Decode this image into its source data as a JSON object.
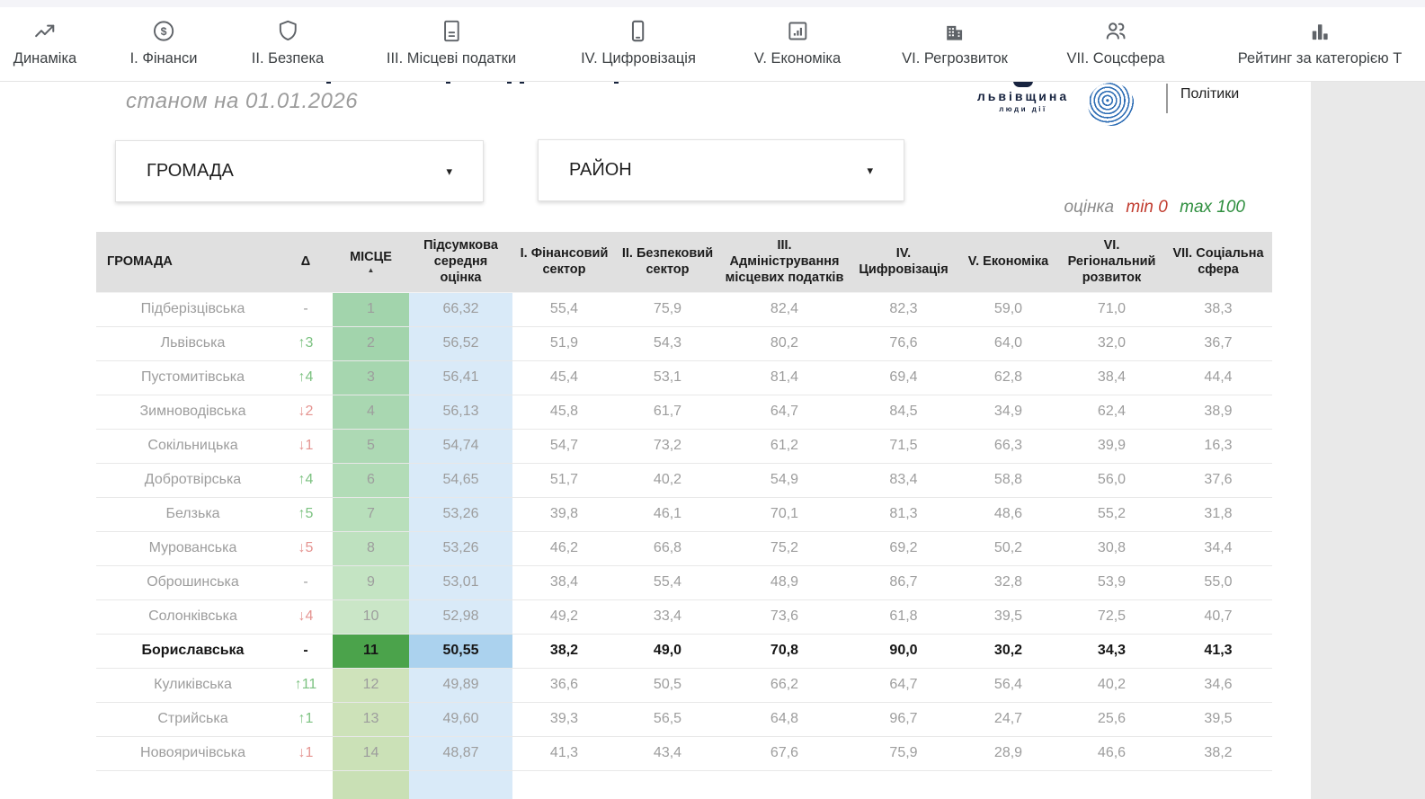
{
  "nav": {
    "items": [
      {
        "label": "Динаміка",
        "icon": "trending-up"
      },
      {
        "label": "І. Фінанси",
        "icon": "dollar-circle"
      },
      {
        "label": "ІІ. Безпека",
        "icon": "shield"
      },
      {
        "label": "ІІІ. Місцеві податки",
        "icon": "document"
      },
      {
        "label": "IV. Цифровізація",
        "icon": "smartphone"
      },
      {
        "label": "V. Економіка",
        "icon": "chart-box"
      },
      {
        "label": "VI. Регрозвиток",
        "icon": "building"
      },
      {
        "label": "VII. Соцсфера",
        "icon": "people"
      },
      {
        "label": "Рейтинг за категорією Т",
        "icon": "leaderboard"
      }
    ]
  },
  "header": {
    "date_note": "станом на 01.01.2026"
  },
  "logos": {
    "region_name": "львівщина",
    "region_tagline": "люди дії",
    "partner": "Політики"
  },
  "filters": {
    "hromada_label": "ГРОМАДА",
    "raion_label": "РАЙОН"
  },
  "scale_note": {
    "label": "оцінка",
    "min": "min 0",
    "max": "max 100"
  },
  "icons": {
    "sort_asc": "▲",
    "caret_down": "▾"
  },
  "colors": {
    "delta_up": "#7cc281",
    "delta_down": "#e59491",
    "highlight_green": "#4ba34b",
    "highlight_blue": "#abd2ee",
    "score_blue": "#d9eaf8",
    "header_bg": "#e0e0e0",
    "min_red": "#c13b2e",
    "max_green": "#2f8f3f",
    "brand_navy": "#17233f",
    "brand_blue": "#2e6db4"
  },
  "table": {
    "columns": [
      "ГРОМАДА",
      "Δ",
      "МІСЦЕ",
      "Підсумкова середня оцінка",
      "І. Фінансовий сектор",
      "ІІ. Безпековий сектор",
      "ІІІ. Адміністрування місцевих податків",
      "IV. Цифровізація",
      "V. Економіка",
      "VI. Регіональний розвиток",
      "VII. Соціальна сфера"
    ],
    "rows": [
      {
        "name": "Підберізцівська",
        "delta": "-",
        "dir": "none",
        "place": "1",
        "score": "66,32",
        "values": [
          "55,4",
          "75,9",
          "82,4",
          "82,3",
          "59,0",
          "71,0",
          "38,3"
        ],
        "highlight": false,
        "place_bg": "#a2d4ac",
        "score_bg": "#d9eaf8"
      },
      {
        "name": "Львівська",
        "delta": "↑3",
        "dir": "up",
        "place": "2",
        "score": "56,52",
        "values": [
          "51,9",
          "54,3",
          "80,2",
          "76,6",
          "64,0",
          "32,0",
          "36,7"
        ],
        "highlight": false,
        "place_bg": "#a2d4ac",
        "score_bg": "#d9eaf8"
      },
      {
        "name": "Пустомитівська",
        "delta": "↑4",
        "dir": "up",
        "place": "3",
        "score": "56,41",
        "values": [
          "45,4",
          "53,1",
          "81,4",
          "69,4",
          "62,8",
          "38,4",
          "44,4"
        ],
        "highlight": false,
        "place_bg": "#a6d6af",
        "score_bg": "#d9eaf8"
      },
      {
        "name": "Зимноводівська",
        "delta": "↓2",
        "dir": "down",
        "place": "4",
        "score": "56,13",
        "values": [
          "45,8",
          "61,7",
          "64,7",
          "84,5",
          "34,9",
          "62,4",
          "38,9"
        ],
        "highlight": false,
        "place_bg": "#a9d7b1",
        "score_bg": "#d9eaf8"
      },
      {
        "name": "Сокільницька",
        "delta": "↓1",
        "dir": "down",
        "place": "5",
        "score": "54,74",
        "values": [
          "54,7",
          "73,2",
          "61,2",
          "71,5",
          "66,3",
          "39,9",
          "16,3"
        ],
        "highlight": false,
        "place_bg": "#add9b4",
        "score_bg": "#d9eaf8"
      },
      {
        "name": "Добротвірська",
        "delta": "↑4",
        "dir": "up",
        "place": "6",
        "score": "54,65",
        "values": [
          "51,7",
          "40,2",
          "54,9",
          "83,4",
          "58,8",
          "56,0",
          "37,6"
        ],
        "highlight": false,
        "place_bg": "#b2dcb7",
        "score_bg": "#d9eaf8"
      },
      {
        "name": "Белзька",
        "delta": "↑5",
        "dir": "up",
        "place": "7",
        "score": "53,26",
        "values": [
          "39,8",
          "46,1",
          "70,1",
          "81,3",
          "48,6",
          "55,2",
          "31,8"
        ],
        "highlight": false,
        "place_bg": "#b8dfbb",
        "score_bg": "#d9eaf8"
      },
      {
        "name": "Мурованська",
        "delta": "↓5",
        "dir": "down",
        "place": "8",
        "score": "53,26",
        "values": [
          "46,2",
          "66,8",
          "75,2",
          "69,2",
          "50,2",
          "30,8",
          "34,4"
        ],
        "highlight": false,
        "place_bg": "#bee1bf",
        "score_bg": "#d9eaf8"
      },
      {
        "name": "Оброшинська",
        "delta": "-",
        "dir": "none",
        "place": "9",
        "score": "53,01",
        "values": [
          "38,4",
          "55,4",
          "48,9",
          "86,7",
          "32,8",
          "53,9",
          "55,0"
        ],
        "highlight": false,
        "place_bg": "#c4e4c3",
        "score_bg": "#d9eaf8"
      },
      {
        "name": "Солонківська",
        "delta": "↓4",
        "dir": "down",
        "place": "10",
        "score": "52,98",
        "values": [
          "49,2",
          "33,4",
          "73,6",
          "61,8",
          "39,5",
          "72,5",
          "40,7"
        ],
        "highlight": false,
        "place_bg": "#cae6c7",
        "score_bg": "#d9eaf8"
      },
      {
        "name": "Бориславська",
        "delta": "-",
        "dir": "none",
        "place": "11",
        "score": "50,55",
        "values": [
          "38,2",
          "49,0",
          "70,8",
          "90,0",
          "30,2",
          "34,3",
          "41,3"
        ],
        "highlight": true,
        "place_bg": "#4ba34b",
        "score_bg": "#abd2ee"
      },
      {
        "name": "Куликівська",
        "delta": "↑11",
        "dir": "up",
        "place": "12",
        "score": "49,89",
        "values": [
          "36,6",
          "50,5",
          "66,2",
          "64,7",
          "56,4",
          "40,2",
          "34,6"
        ],
        "highlight": false,
        "place_bg": "#cfe3bb",
        "score_bg": "#d9eaf8"
      },
      {
        "name": "Стрийська",
        "delta": "↑1",
        "dir": "up",
        "place": "13",
        "score": "49,60",
        "values": [
          "39,3",
          "56,5",
          "64,8",
          "96,7",
          "24,7",
          "25,6",
          "39,5"
        ],
        "highlight": false,
        "place_bg": "#cde2b9",
        "score_bg": "#d9eaf8"
      },
      {
        "name": "Новояричівська",
        "delta": "↓1",
        "dir": "down",
        "place": "14",
        "score": "48,87",
        "values": [
          "41,3",
          "43,4",
          "67,6",
          "75,9",
          "28,9",
          "46,6",
          "38,2"
        ],
        "highlight": false,
        "place_bg": "#cbe1b7",
        "score_bg": "#d9eaf8"
      },
      {
        "name": "",
        "delta": "",
        "dir": "none",
        "place": "",
        "score": "",
        "values": [
          "",
          "",
          "",
          "",
          "",
          "",
          ""
        ],
        "highlight": false,
        "place_bg": "#c9e0b5",
        "score_bg": "#d9eaf8"
      }
    ]
  }
}
